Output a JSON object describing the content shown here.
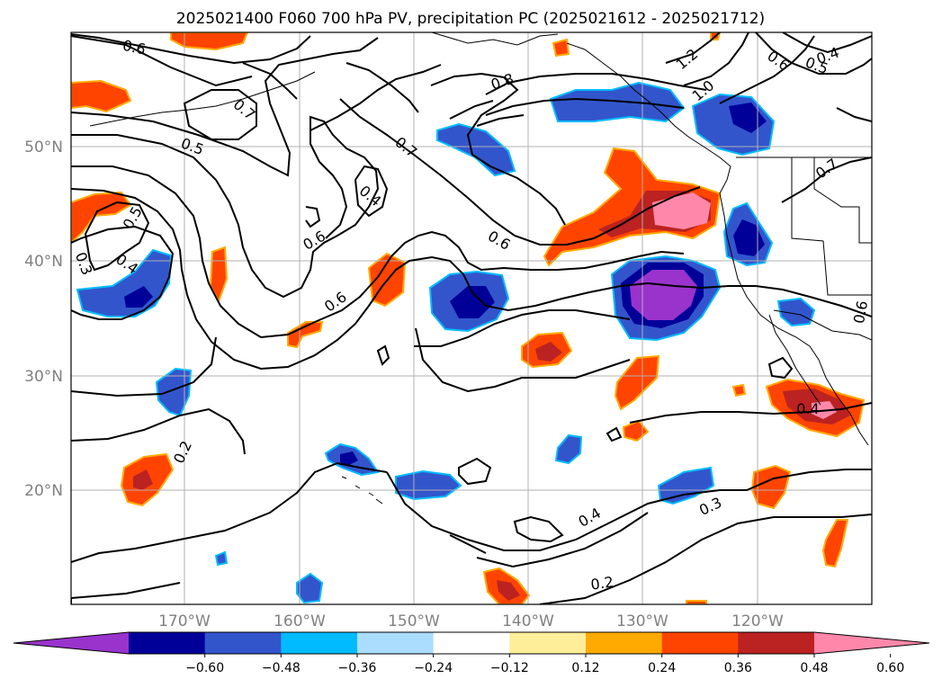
{
  "title": "2025021400 F060 700 hPa PV, precipitation PC (2025021612 - 2025021712)",
  "axes": {
    "lat_labels": [
      "50°N",
      "40°N",
      "30°N",
      "20°N"
    ],
    "lon_labels": [
      "170°W",
      "160°W",
      "150°W",
      "140°W",
      "130°W",
      "120°W"
    ]
  },
  "colorbar": {
    "colors": [
      "#9933cc",
      "#000099",
      "#3355cc",
      "#00bbff",
      "#aaddff",
      "#ffffff",
      "#ffee99",
      "#ffaa00",
      "#ff4400",
      "#bb2222",
      "#ff88aa"
    ],
    "ticks": [
      "−0.60",
      "−0.48",
      "−0.36",
      "−0.24",
      "−0.12",
      "0.12",
      "0.24",
      "0.36",
      "0.48",
      "0.60"
    ]
  },
  "contour_labels": [
    "0.6",
    "0.7",
    "0.5",
    "0.4",
    "0.6",
    "0.7",
    "0.8",
    "1.2",
    "1.0",
    "0.6",
    "0.5",
    "0.4",
    "0.7",
    "0.5",
    "0.4",
    "0.3",
    "0.6",
    "0.6",
    "0.6",
    "0.4",
    "0.2",
    "0.4",
    "0.3",
    "0.2"
  ]
}
